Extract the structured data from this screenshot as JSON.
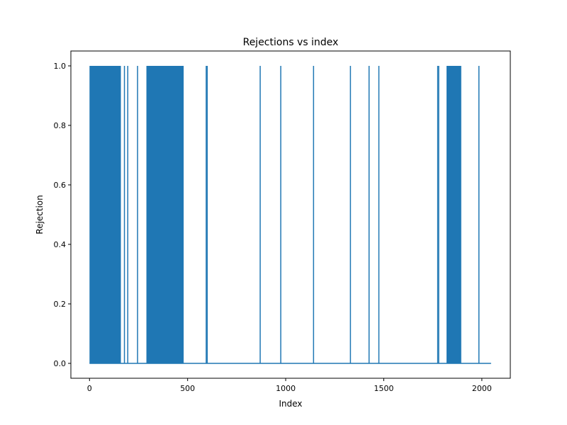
{
  "chart_data": {
    "type": "line",
    "title": "Rejections vs index",
    "xlabel": "Index",
    "ylabel": "Rejection",
    "xlim": [
      -95,
      2145
    ],
    "ylim": [
      -0.05,
      1.05
    ],
    "x_ticks": [
      0,
      500,
      1000,
      1500,
      2000
    ],
    "x_tick_labels": [
      "0",
      "500",
      "1000",
      "1500",
      "2000"
    ],
    "y_ticks": [
      0.0,
      0.2,
      0.4,
      0.6,
      0.8,
      1.0
    ],
    "y_tick_labels": [
      "0.0",
      "0.2",
      "0.4",
      "0.6",
      "0.8",
      "1.0"
    ],
    "grid": false,
    "color": "#1f77b4",
    "x_start": 0,
    "x_end": 2047,
    "dense_spike_regions": [
      [
        0,
        160
      ],
      [
        290,
        480
      ],
      [
        1820,
        1895
      ]
    ],
    "spike_x": [
      178,
      195,
      245,
      595,
      600,
      870,
      975,
      1142,
      1330,
      1425,
      1475,
      1775,
      1780,
      1985
    ]
  }
}
